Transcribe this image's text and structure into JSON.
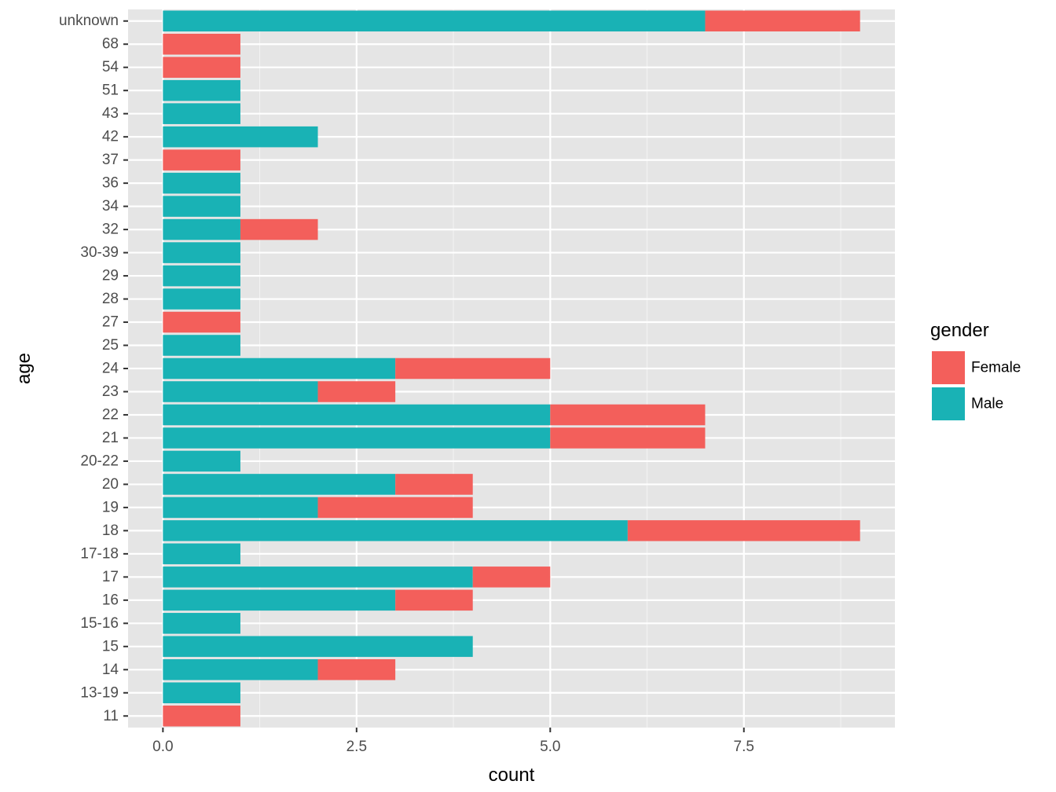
{
  "chart_data": {
    "type": "bar",
    "orientation": "horizontal",
    "stacked": true,
    "xlabel": "count",
    "ylabel": "age",
    "xlim": [
      -0.45,
      9.45
    ],
    "x_ticks": [
      0,
      2.5,
      5,
      7.5
    ],
    "x_tick_labels": [
      "0.0",
      "2.5",
      "5.0",
      "7.5"
    ],
    "x_minor_ticks": [
      1.25,
      3.75,
      6.25,
      8.75
    ],
    "categories": [
      "11",
      "13-19",
      "14",
      "15",
      "15-16",
      "16",
      "17",
      "17-18",
      "18",
      "19",
      "20",
      "20-22",
      "21",
      "22",
      "23",
      "24",
      "25",
      "27",
      "28",
      "29",
      "30-39",
      "32",
      "34",
      "36",
      "37",
      "42",
      "43",
      "51",
      "54",
      "68",
      "unknown"
    ],
    "series": [
      {
        "name": "Male",
        "color": "#19B2B5",
        "values": [
          0,
          1,
          2,
          4,
          1,
          3,
          4,
          1,
          6,
          2,
          3,
          1,
          5,
          5,
          2,
          3,
          1,
          0,
          1,
          1,
          1,
          1,
          1,
          1,
          0,
          2,
          1,
          1,
          0,
          0,
          7
        ]
      },
      {
        "name": "Female",
        "color": "#F35F5B",
        "values": [
          1,
          0,
          1,
          0,
          0,
          1,
          1,
          0,
          3,
          2,
          1,
          0,
          2,
          2,
          1,
          2,
          0,
          1,
          0,
          0,
          0,
          1,
          0,
          0,
          1,
          0,
          0,
          0,
          1,
          1,
          2
        ]
      }
    ],
    "legend": {
      "title": "gender",
      "position": "right",
      "entries": [
        {
          "label": "Female",
          "color": "#F35F5B"
        },
        {
          "label": "Male",
          "color": "#19B2B5"
        }
      ]
    },
    "grid": true,
    "panel_background": "#E5E5E5"
  }
}
